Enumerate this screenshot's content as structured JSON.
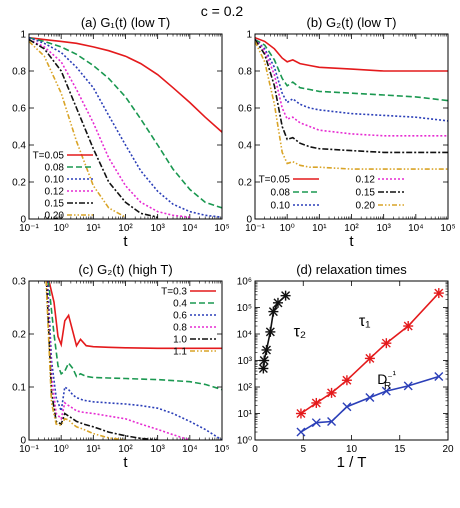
{
  "figure": {
    "title": "c = 0.2"
  },
  "chart_data": [
    {
      "id": "a",
      "type": "line",
      "title": "(a) G₁(t) (low T)",
      "xlabel": "t",
      "ylabel": "",
      "xscale": "log",
      "xlim": [
        0.1,
        100000
      ],
      "ylim": [
        0,
        1
      ],
      "x_ticks": [
        "10⁻¹",
        "10⁰",
        "10¹",
        "10²",
        "10³",
        "10⁴",
        "10⁵"
      ],
      "y_ticks": [
        "0",
        "0.2",
        "0.4",
        "0.6",
        "0.8",
        "1"
      ],
      "legend_position": "lower-left",
      "series": [
        {
          "name": "T=0.05",
          "color": "#e41a1c",
          "style": "solid",
          "x": [
            0.1,
            0.3,
            1,
            3,
            10,
            30,
            100,
            300,
            1000,
            3000,
            10000,
            30000,
            100000
          ],
          "y": [
            0.98,
            0.97,
            0.96,
            0.95,
            0.93,
            0.91,
            0.88,
            0.84,
            0.78,
            0.71,
            0.63,
            0.55,
            0.47
          ]
        },
        {
          "name": "0.08",
          "color": "#1a9850",
          "style": "dash",
          "x": [
            0.1,
            0.3,
            1,
            3,
            10,
            30,
            100,
            300,
            1000,
            3000,
            10000,
            30000,
            100000
          ],
          "y": [
            0.98,
            0.96,
            0.93,
            0.89,
            0.83,
            0.76,
            0.66,
            0.54,
            0.4,
            0.27,
            0.16,
            0.09,
            0.06
          ]
        },
        {
          "name": "0.10",
          "color": "#2b3fb8",
          "style": "dot",
          "x": [
            0.1,
            0.3,
            1,
            3,
            10,
            30,
            100,
            300,
            1000,
            3000,
            10000,
            30000,
            100000
          ],
          "y": [
            0.98,
            0.95,
            0.9,
            0.82,
            0.71,
            0.56,
            0.4,
            0.26,
            0.15,
            0.08,
            0.04,
            0.02,
            0.01
          ]
        },
        {
          "name": "0.12",
          "color": "#e62bd2",
          "style": "dot",
          "x": [
            0.1,
            0.3,
            1,
            3,
            10,
            30,
            100,
            300,
            1000,
            3000,
            10000
          ],
          "y": [
            0.97,
            0.93,
            0.85,
            0.7,
            0.52,
            0.33,
            0.18,
            0.09,
            0.04,
            0.02,
            0.01
          ]
        },
        {
          "name": "0.15",
          "color": "#111111",
          "style": "dashdot",
          "x": [
            0.1,
            0.3,
            1,
            3,
            10,
            30,
            100,
            300,
            1000
          ],
          "y": [
            0.97,
            0.92,
            0.8,
            0.6,
            0.38,
            0.2,
            0.09,
            0.03,
            0.01
          ]
        },
        {
          "name": "0.20",
          "color": "#d9a427",
          "style": "dashdotdot",
          "x": [
            0.1,
            0.3,
            1,
            3,
            10,
            30,
            100
          ],
          "y": [
            0.96,
            0.88,
            0.68,
            0.42,
            0.18,
            0.06,
            0.01
          ]
        }
      ]
    },
    {
      "id": "b",
      "type": "line",
      "title": "(b) G₂(t) (low T)",
      "xlabel": "t",
      "ylabel": "",
      "xscale": "log",
      "xlim": [
        0.1,
        100000
      ],
      "ylim": [
        0,
        1
      ],
      "x_ticks": [
        "10⁻¹",
        "10⁰",
        "10¹",
        "10²",
        "10³",
        "10⁴",
        "10⁵"
      ],
      "y_ticks": [
        "0",
        "0.2",
        "0.4",
        "0.6",
        "0.8",
        "1"
      ],
      "legend_position": "lower, two columns",
      "series": [
        {
          "name": "T=0.05",
          "color": "#e41a1c",
          "style": "solid",
          "x": [
            0.1,
            0.2,
            0.4,
            0.7,
            1,
            1.5,
            2.5,
            5,
            10,
            100,
            1000,
            10000,
            100000
          ],
          "y": [
            0.98,
            0.96,
            0.92,
            0.87,
            0.85,
            0.86,
            0.84,
            0.83,
            0.82,
            0.81,
            0.8,
            0.8,
            0.8
          ]
        },
        {
          "name": "0.08",
          "color": "#1a9850",
          "style": "dash",
          "x": [
            0.1,
            0.2,
            0.4,
            0.7,
            1,
            1.5,
            2.5,
            5,
            10,
            100,
            1000,
            10000,
            100000
          ],
          "y": [
            0.97,
            0.94,
            0.86,
            0.76,
            0.72,
            0.74,
            0.71,
            0.7,
            0.69,
            0.68,
            0.67,
            0.66,
            0.64
          ]
        },
        {
          "name": "0.10",
          "color": "#2b3fb8",
          "style": "dot",
          "x": [
            0.1,
            0.2,
            0.4,
            0.7,
            1,
            1.5,
            2.5,
            5,
            10,
            100,
            1000,
            10000,
            100000
          ],
          "y": [
            0.97,
            0.92,
            0.82,
            0.68,
            0.63,
            0.65,
            0.62,
            0.6,
            0.59,
            0.57,
            0.56,
            0.55,
            0.53
          ]
        },
        {
          "name": "0.12",
          "color": "#e62bd2",
          "style": "dot",
          "x": [
            0.1,
            0.2,
            0.4,
            0.7,
            1,
            1.5,
            2.5,
            5,
            10,
            100,
            1000,
            10000,
            100000
          ],
          "y": [
            0.97,
            0.91,
            0.78,
            0.6,
            0.54,
            0.55,
            0.52,
            0.5,
            0.48,
            0.46,
            0.45,
            0.45,
            0.45
          ]
        },
        {
          "name": "0.15",
          "color": "#111111",
          "style": "dashdot",
          "x": [
            0.1,
            0.2,
            0.4,
            0.7,
            1,
            1.5,
            2.5,
            5,
            10,
            100,
            1000,
            10000,
            100000
          ],
          "y": [
            0.97,
            0.89,
            0.72,
            0.5,
            0.43,
            0.44,
            0.41,
            0.39,
            0.38,
            0.37,
            0.36,
            0.36,
            0.36
          ]
        },
        {
          "name": "0.20",
          "color": "#d9a427",
          "style": "dashdotdot",
          "x": [
            0.1,
            0.2,
            0.4,
            0.7,
            1,
            1.5,
            2.5,
            5,
            10,
            100,
            1000,
            10000,
            100000
          ],
          "y": [
            0.96,
            0.85,
            0.62,
            0.36,
            0.3,
            0.31,
            0.29,
            0.28,
            0.28,
            0.27,
            0.27,
            0.27,
            0.27
          ]
        }
      ]
    },
    {
      "id": "c",
      "type": "line",
      "title": "(c) G₂(t) (high T)",
      "xlabel": "t",
      "ylabel": "",
      "xscale": "log",
      "xlim": [
        0.1,
        100000
      ],
      "ylim": [
        0,
        0.3
      ],
      "x_ticks": [
        "10⁻¹",
        "10⁰",
        "10¹",
        "10²",
        "10³",
        "10⁴",
        "10⁵"
      ],
      "y_ticks": [
        "0",
        "0.1",
        "0.2",
        "0.3"
      ],
      "legend_position": "top-right",
      "series": [
        {
          "name": "T=0.3",
          "color": "#e41a1c",
          "style": "solid",
          "x": [
            0.42,
            0.6,
            0.8,
            1.0,
            1.3,
            1.7,
            2.3,
            3,
            4,
            6,
            10,
            30,
            100,
            1000,
            10000,
            100000
          ],
          "y": [
            0.3,
            0.26,
            0.195,
            0.18,
            0.225,
            0.235,
            0.205,
            0.178,
            0.19,
            0.178,
            0.176,
            0.175,
            0.174,
            0.173,
            0.173,
            0.173
          ]
        },
        {
          "name": "0.4",
          "color": "#1a9850",
          "style": "dash",
          "x": [
            0.4,
            0.6,
            0.8,
            1.0,
            1.3,
            1.7,
            2.3,
            3,
            4,
            6,
            10,
            30,
            100,
            300,
            1000,
            3000,
            10000,
            30000,
            100000
          ],
          "y": [
            0.3,
            0.2,
            0.14,
            0.125,
            0.13,
            0.145,
            0.135,
            0.12,
            0.125,
            0.12,
            0.118,
            0.117,
            0.116,
            0.115,
            0.114,
            0.112,
            0.11,
            0.105,
            0.095
          ]
        },
        {
          "name": "0.6",
          "color": "#2b3fb8",
          "style": "dot",
          "x": [
            0.38,
            0.5,
            0.7,
            1.0,
            1.3,
            1.7,
            2.3,
            3,
            5,
            10,
            30,
            100,
            300,
            1000,
            3000,
            10000,
            30000,
            100000
          ],
          "y": [
            0.3,
            0.15,
            0.08,
            0.055,
            0.1,
            0.095,
            0.085,
            0.08,
            0.075,
            0.072,
            0.07,
            0.068,
            0.065,
            0.06,
            0.05,
            0.035,
            0.02,
            0.0
          ]
        },
        {
          "name": "0.8",
          "color": "#e62bd2",
          "style": "dot",
          "x": [
            0.36,
            0.5,
            0.7,
            1.0,
            1.3,
            1.7,
            2.3,
            3,
            5,
            10,
            30,
            100,
            300,
            1000,
            3000,
            10000
          ],
          "y": [
            0.3,
            0.12,
            0.05,
            0.04,
            0.07,
            0.065,
            0.06,
            0.055,
            0.052,
            0.05,
            0.045,
            0.04,
            0.03,
            0.02,
            0.01,
            0.0
          ]
        },
        {
          "name": "1.0",
          "color": "#111111",
          "style": "dashdot",
          "x": [
            0.35,
            0.5,
            0.7,
            1.0,
            1.3,
            1.7,
            2.3,
            3,
            5,
            10,
            30,
            100,
            300,
            1000
          ],
          "y": [
            0.3,
            0.09,
            0.035,
            0.03,
            0.05,
            0.045,
            0.04,
            0.035,
            0.03,
            0.025,
            0.015,
            0.008,
            0.003,
            0.0
          ]
        },
        {
          "name": "1.1",
          "color": "#d9a427",
          "style": "dashdotdot",
          "x": [
            0.34,
            0.5,
            0.7,
            1.0,
            1.3,
            1.7,
            2.3,
            3,
            5,
            10,
            30,
            100
          ],
          "y": [
            0.3,
            0.07,
            0.03,
            0.028,
            0.04,
            0.038,
            0.03,
            0.025,
            0.02,
            0.012,
            0.004,
            0.0
          ]
        }
      ]
    },
    {
      "id": "d",
      "type": "line",
      "title": "(d) relaxation times",
      "xlabel": "1 / T",
      "ylabel": "",
      "yscale": "log",
      "xlim": [
        0,
        21
      ],
      "ylim": [
        1,
        1000000
      ],
      "x_ticks": [
        "0",
        "5",
        "10",
        "15",
        "20"
      ],
      "y_ticks": [
        "10⁰",
        "10¹",
        "10²",
        "10³",
        "10⁴",
        "10⁵",
        "10⁶"
      ],
      "labels": [
        "τ₂",
        "τ₁",
        "D₋¹ R"
      ],
      "series": [
        {
          "name": "τ₂",
          "color": "#111111",
          "marker": "*",
          "x": [
            0.91,
            1.0,
            1.25,
            1.67,
            2.0,
            2.5,
            3.33
          ],
          "y": [
            500,
            1000,
            2500,
            12000,
            70000,
            150000,
            280000
          ]
        },
        {
          "name": "τ₁",
          "color": "#e41a1c",
          "marker": "*",
          "x": [
            5,
            6.67,
            8.33,
            10,
            12.5,
            14.29,
            16.67,
            20
          ],
          "y": [
            10,
            25,
            60,
            180,
            1200,
            4500,
            20000,
            350000
          ]
        },
        {
          "name": "D_R^-1",
          "color": "#2b3fb8",
          "marker": "x",
          "x": [
            5,
            6.67,
            8.33,
            10,
            12.5,
            14.29,
            16.67,
            20
          ],
          "y": [
            2,
            4.5,
            5,
            18,
            40,
            70,
            110,
            250
          ]
        }
      ]
    }
  ]
}
